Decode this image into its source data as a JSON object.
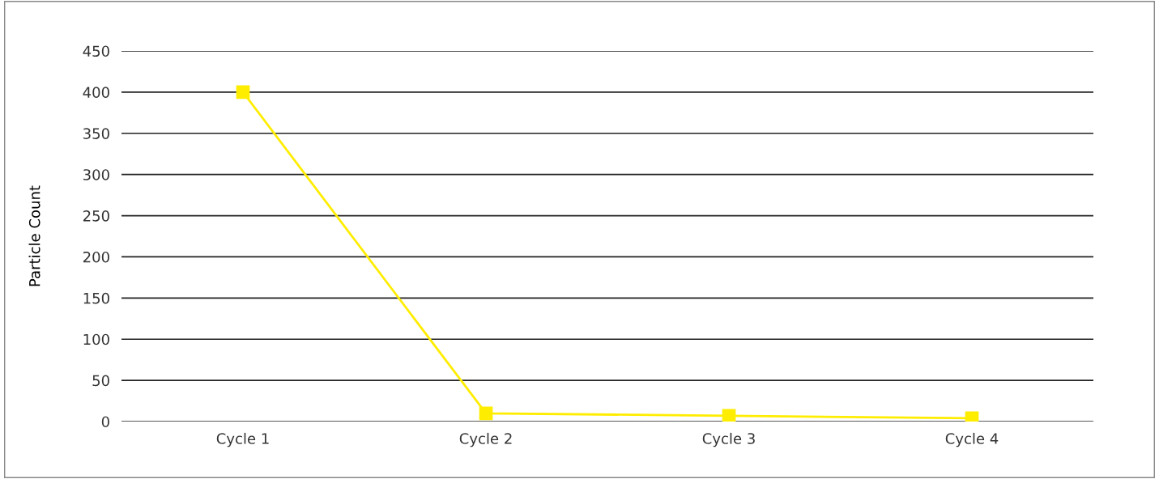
{
  "chart_data": {
    "type": "line",
    "ylabel": "Particle Count",
    "categories": [
      "Cycle 1",
      "Cycle 2",
      "Cycle 3",
      "Cycle 4"
    ],
    "series": [
      {
        "color": "#ffed00",
        "values": [
          400,
          10,
          7,
          4
        ]
      }
    ],
    "ylim": [
      0,
      450
    ],
    "yticks": [
      0,
      50,
      100,
      150,
      200,
      250,
      300,
      350,
      400,
      450
    ],
    "grid": "y",
    "marker": "square",
    "line_style": "solid",
    "legend": false
  }
}
